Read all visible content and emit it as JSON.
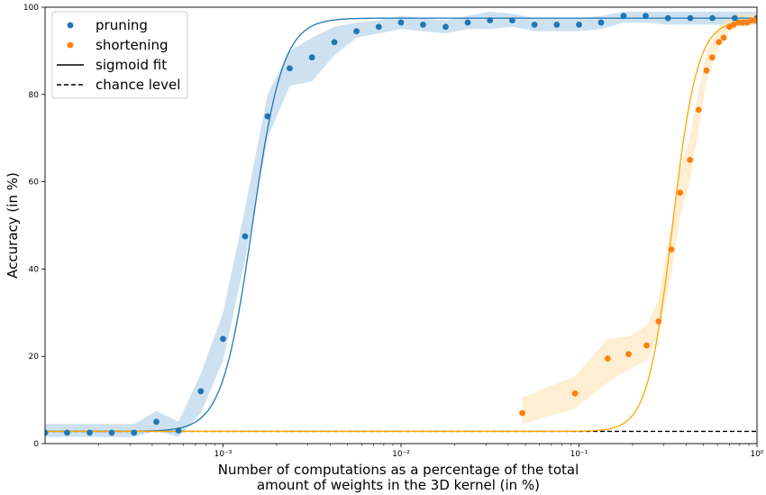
{
  "chart_data": {
    "type": "scatter",
    "xscale": "log",
    "xlim": [
      0.0001,
      1
    ],
    "ylim": [
      0,
      100
    ],
    "xlabel_lines": [
      "Number of computations as a percentage of the total",
      "amount of weights in the 3D kernel (in %)"
    ],
    "ylabel": "Accuracy (in %)",
    "x_ticks": [
      {
        "value": 0.001,
        "label": "10⁻³"
      },
      {
        "value": 0.01,
        "label": "10⁻²"
      },
      {
        "value": 0.1,
        "label": "10⁻¹"
      },
      {
        "value": 1,
        "label": "10⁰"
      }
    ],
    "y_ticks": [
      0,
      20,
      40,
      60,
      80,
      100
    ],
    "chance_level": 2.8,
    "legend": {
      "position": "top-left",
      "entries": [
        {
          "label": "pruning",
          "kind": "dot",
          "color": "#1f77b4"
        },
        {
          "label": "shortening",
          "kind": "dot",
          "color": "#ff7f0e"
        },
        {
          "label": "sigmoid fit",
          "kind": "solid-line",
          "color": "#000000"
        },
        {
          "label": "chance level",
          "kind": "dashed-line",
          "color": "#000000"
        }
      ]
    },
    "series": [
      {
        "name": "pruning",
        "color": "#1f77b4",
        "band_color": "#aecde8",
        "x": [
          0.0001,
          0.000133,
          0.000178,
          0.000237,
          0.000316,
          0.000422,
          0.000562,
          0.00075,
          0.001,
          0.00133,
          0.00178,
          0.00237,
          0.00316,
          0.00422,
          0.00562,
          0.0075,
          0.01,
          0.0133,
          0.0178,
          0.0237,
          0.0316,
          0.0422,
          0.0562,
          0.075,
          0.1,
          0.133,
          0.178,
          0.237,
          0.316,
          0.422,
          0.562,
          0.75,
          1.0
        ],
        "y": [
          2.5,
          2.5,
          2.5,
          2.5,
          2.5,
          5.0,
          3.0,
          12.0,
          24.0,
          47.5,
          75.0,
          86.0,
          88.5,
          92.0,
          94.5,
          95.5,
          96.5,
          96.0,
          95.5,
          96.5,
          97.0,
          97.0,
          96.0,
          96.0,
          96.0,
          96.5,
          98.0,
          98.0,
          97.5,
          97.5,
          97.5,
          97.5,
          97.5
        ],
        "band_low": [
          1.5,
          1.5,
          1.5,
          1.5,
          1.5,
          3.0,
          1.5,
          7.0,
          19.0,
          42.0,
          70.0,
          82.0,
          83.0,
          89.0,
          93.0,
          94.0,
          95.0,
          94.5,
          94.0,
          95.0,
          95.0,
          95.5,
          94.5,
          94.5,
          94.5,
          95.0,
          96.5,
          96.5,
          96.0,
          96.0,
          96.0,
          96.0,
          96.0
        ],
        "band_high": [
          4.5,
          4.5,
          4.5,
          4.5,
          4.5,
          7.5,
          5.0,
          16.0,
          30.0,
          54.0,
          80.0,
          90.0,
          93.0,
          95.5,
          96.5,
          97.0,
          98.0,
          97.5,
          97.0,
          98.0,
          99.0,
          98.5,
          97.5,
          97.5,
          97.5,
          98.0,
          99.0,
          99.0,
          99.0,
          99.0,
          99.0,
          99.0,
          99.0
        ],
        "fit": {
          "lower": 2.8,
          "upper": 97.5,
          "midpoint_log10x": -2.835,
          "width_decades": 0.085
        }
      },
      {
        "name": "shortening",
        "color": "#ff7f0e",
        "band_color": "#fee2b4",
        "fit_color": "#ffa500",
        "x": [
          0.048,
          0.095,
          0.145,
          0.19,
          0.24,
          0.28,
          0.33,
          0.37,
          0.42,
          0.47,
          0.52,
          0.56,
          0.61,
          0.65,
          0.7,
          0.74,
          0.79,
          0.83,
          0.88,
          0.93,
          0.97,
          1.0
        ],
        "y": [
          7.0,
          11.5,
          19.5,
          20.5,
          22.5,
          28.0,
          44.5,
          57.5,
          65.0,
          76.5,
          85.5,
          88.5,
          92.0,
          93.0,
          95.5,
          96.0,
          96.5,
          96.5,
          96.5,
          97.0,
          97.0,
          97.0
        ],
        "band_low": [
          4.5,
          8.0,
          14.0,
          17.0,
          19.0,
          25.0,
          39.0,
          52.0,
          60.0,
          72.0,
          83.0,
          86.5,
          91.0,
          92.0,
          94.5,
          95.0,
          95.5,
          95.5,
          95.5,
          96.0,
          96.0,
          96.0
        ],
        "band_high": [
          10.5,
          15.5,
          24.0,
          24.5,
          27.0,
          33.0,
          50.0,
          63.0,
          70.0,
          81.0,
          89.5,
          92.0,
          95.5,
          96.5,
          98.0,
          98.0,
          98.5,
          98.5,
          98.5,
          98.5,
          98.5,
          98.5
        ],
        "fit": {
          "lower": 2.8,
          "upper": 97.0,
          "midpoint_log10x": -0.475,
          "width_decades": 0.07
        }
      }
    ]
  }
}
